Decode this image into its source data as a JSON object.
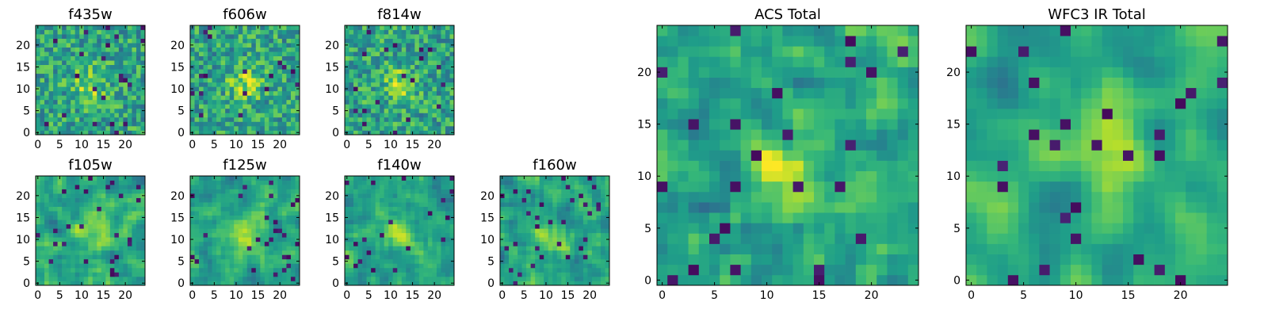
{
  "chart_data": [
    {
      "type": "heatmap",
      "title": "f435w",
      "xticks": [
        "0",
        "5",
        "10",
        "15",
        "20"
      ],
      "yticks": [
        "0",
        "5",
        "10",
        "15",
        "20"
      ],
      "xlim": [
        -0.5,
        24.5
      ],
      "ylim": [
        -0.5,
        24.5
      ],
      "grid": false,
      "colormap": "viridis"
    },
    {
      "type": "heatmap",
      "title": "f606w",
      "xticks": [
        "0",
        "5",
        "10",
        "15",
        "20"
      ],
      "yticks": [
        "0",
        "5",
        "10",
        "15",
        "20"
      ],
      "xlim": [
        -0.5,
        24.5
      ],
      "ylim": [
        -0.5,
        24.5
      ],
      "grid": false,
      "colormap": "viridis"
    },
    {
      "type": "heatmap",
      "title": "f814w",
      "xticks": [
        "0",
        "5",
        "10",
        "15",
        "20"
      ],
      "yticks": [
        "0",
        "5",
        "10",
        "15",
        "20"
      ],
      "xlim": [
        -0.5,
        24.5
      ],
      "ylim": [
        -0.5,
        24.5
      ],
      "grid": false,
      "colormap": "viridis"
    },
    {
      "type": "heatmap",
      "title": "f105w",
      "xticks": [
        "0",
        "5",
        "10",
        "15",
        "20"
      ],
      "yticks": [
        "0",
        "5",
        "10",
        "15",
        "20"
      ],
      "xlim": [
        -0.5,
        24.5
      ],
      "ylim": [
        -0.5,
        24.5
      ],
      "grid": false,
      "colormap": "viridis"
    },
    {
      "type": "heatmap",
      "title": "f125w",
      "xticks": [
        "0",
        "5",
        "10",
        "15",
        "20"
      ],
      "yticks": [
        "0",
        "5",
        "10",
        "15",
        "20"
      ],
      "xlim": [
        -0.5,
        24.5
      ],
      "ylim": [
        -0.5,
        24.5
      ],
      "grid": false,
      "colormap": "viridis"
    },
    {
      "type": "heatmap",
      "title": "f140w",
      "xticks": [
        "0",
        "5",
        "10",
        "15",
        "20"
      ],
      "yticks": [
        "0",
        "5",
        "10",
        "15",
        "20"
      ],
      "xlim": [
        -0.5,
        24.5
      ],
      "ylim": [
        -0.5,
        24.5
      ],
      "grid": false,
      "colormap": "viridis"
    },
    {
      "type": "heatmap",
      "title": "f160w",
      "xticks": [
        "0",
        "5",
        "10",
        "15",
        "20"
      ],
      "yticks": [
        "0",
        "5",
        "10",
        "15",
        "20"
      ],
      "xlim": [
        -0.5,
        24.5
      ],
      "ylim": [
        -0.5,
        24.5
      ],
      "grid": false,
      "colormap": "viridis"
    },
    {
      "type": "heatmap",
      "title": "ACS Total",
      "xticks": [
        "0",
        "5",
        "10",
        "15",
        "20"
      ],
      "yticks": [
        "0",
        "5",
        "10",
        "15",
        "20"
      ],
      "xlim": [
        -0.5,
        24.5
      ],
      "ylim": [
        -0.5,
        24.5
      ],
      "grid": false,
      "colormap": "viridis"
    },
    {
      "type": "heatmap",
      "title": "WFC3 IR Total",
      "xticks": [
        "0",
        "5",
        "10",
        "15",
        "20"
      ],
      "yticks": [
        "0",
        "5",
        "10",
        "15",
        "20"
      ],
      "xlim": [
        -0.5,
        24.5
      ],
      "ylim": [
        -0.5,
        24.5
      ],
      "grid": false,
      "colormap": "viridis"
    }
  ]
}
